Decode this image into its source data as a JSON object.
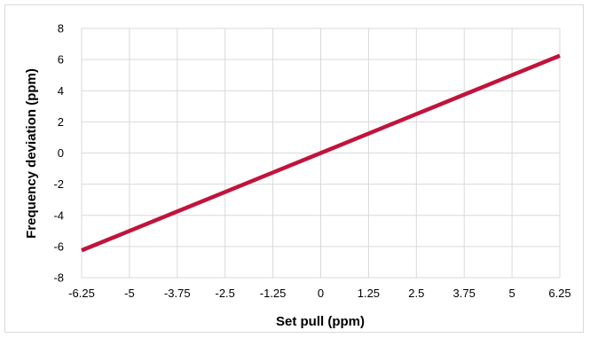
{
  "chart_data": {
    "type": "line",
    "title": "",
    "xlabel": "Set pull (ppm)",
    "ylabel": "Frequency deviation (ppm)",
    "x_tick_labels": [
      "-6.25",
      "-5",
      "-3.75",
      "-2.5",
      "-1.25",
      "0",
      "1.25",
      "2.5",
      "3.75",
      "5",
      "6.25"
    ],
    "y_tick_labels": [
      "-8",
      "-6",
      "-4",
      "-2",
      "0",
      "2",
      "4",
      "6",
      "8"
    ],
    "xlim": [
      -6.25,
      6.25
    ],
    "ylim": [
      -8,
      8
    ],
    "grid": true,
    "legend": "none",
    "series": [
      {
        "color": "#c0143c",
        "x": [
          -6.25,
          -5,
          -3.75,
          -2.5,
          -1.25,
          0,
          1.25,
          2.5,
          3.75,
          5,
          6.25
        ],
        "y": [
          -6.25,
          -5,
          -3.75,
          -2.5,
          -1.25,
          0,
          1.25,
          2.5,
          3.75,
          5,
          6.25
        ]
      }
    ]
  }
}
